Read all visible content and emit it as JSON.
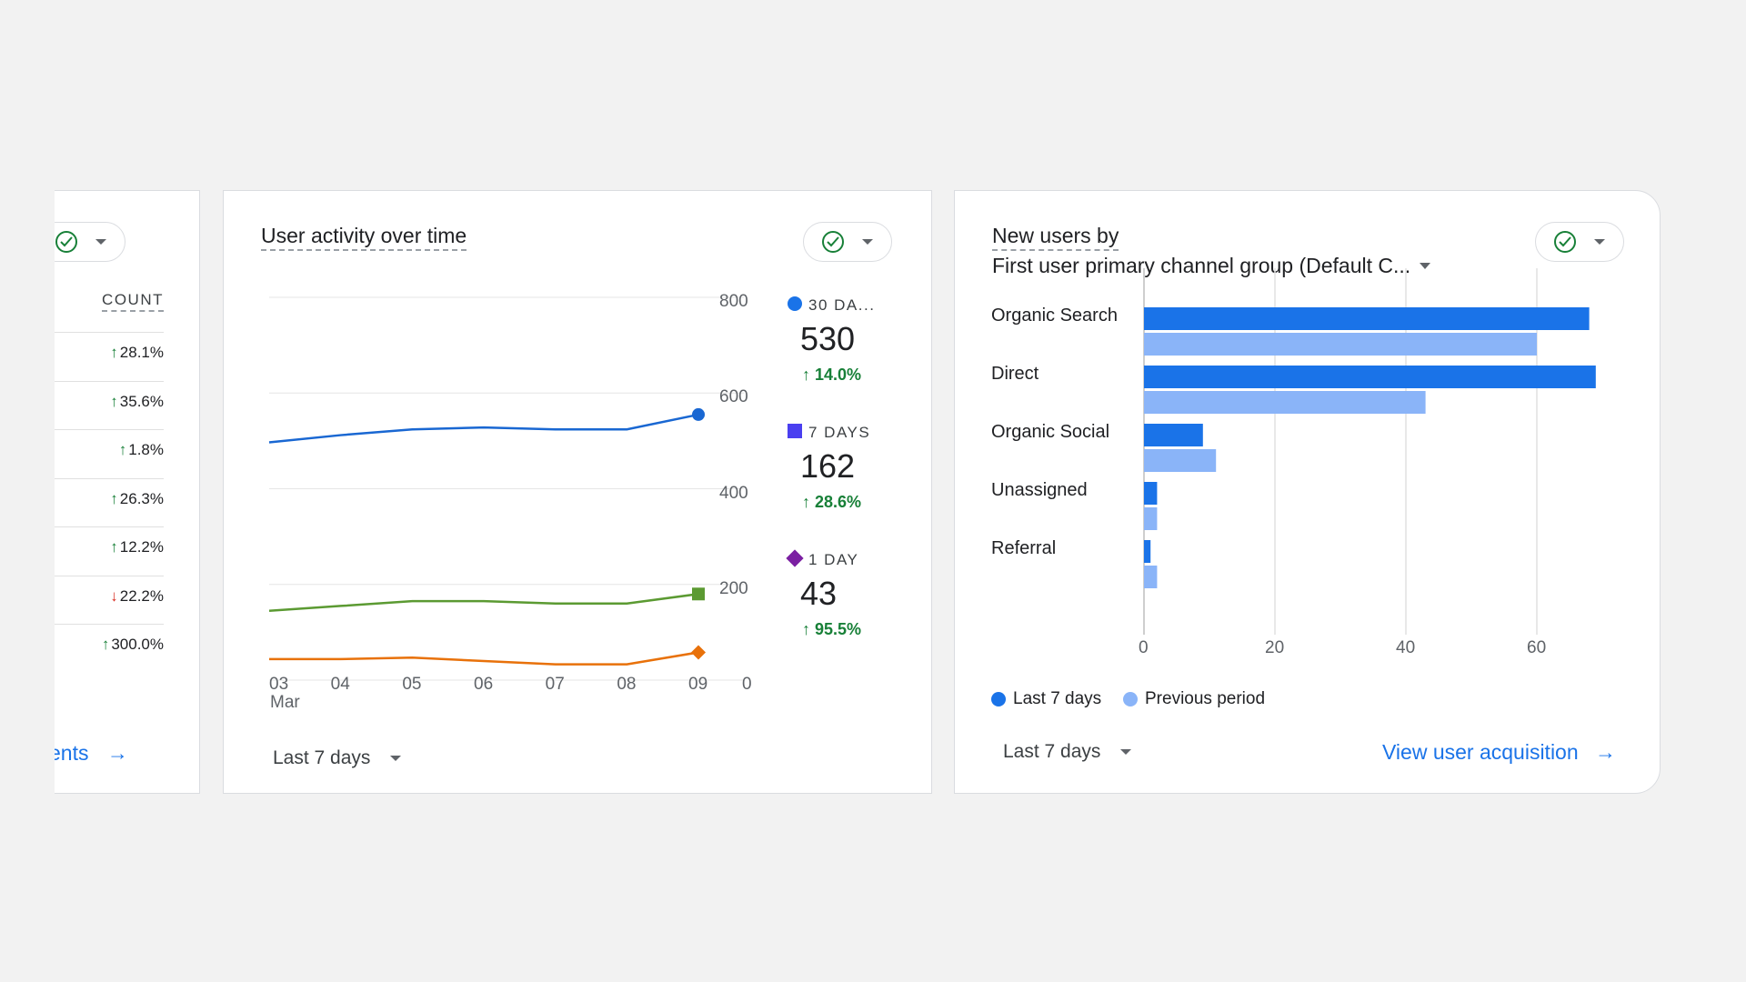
{
  "left_card": {
    "column_header": "COUNT",
    "rows": [
      {
        "dir": "up",
        "value": "28.1%"
      },
      {
        "dir": "up",
        "value": "35.6%"
      },
      {
        "dir": "up",
        "value": "1.8%"
      },
      {
        "dir": "up",
        "value": "26.3%"
      },
      {
        "dir": "up",
        "value": "12.2%"
      },
      {
        "dir": "down",
        "value": "22.2%"
      },
      {
        "dir": "up",
        "value": "300.0%"
      }
    ],
    "link_label": "ents"
  },
  "activity_card": {
    "title": "User activity over time",
    "y_ticks": [
      "800",
      "600",
      "400",
      "200",
      "0"
    ],
    "x_ticks": [
      "03",
      "04",
      "05",
      "06",
      "07",
      "08",
      "09"
    ],
    "x_sub": "Mar",
    "kpis": [
      {
        "label": "30 DA...",
        "value": "530",
        "delta": "14.0%",
        "color": "#1a73e8",
        "marker": "circle"
      },
      {
        "label": "7 DAYS",
        "value": "162",
        "delta": "28.6%",
        "color": "#4a3ff0",
        "marker": "square"
      },
      {
        "label": "1 DAY",
        "value": "43",
        "delta": "95.5%",
        "color": "#7b1fa2",
        "marker": "diamond"
      }
    ],
    "footer_select": "Last 7 days"
  },
  "acquisition_card": {
    "title_line1": "New users by",
    "title_line2": "First user primary channel group (Default C...",
    "legend": [
      {
        "label": "Last 7 days",
        "color": "#1a73e8"
      },
      {
        "label": "Previous period",
        "color": "#8ab4f8"
      }
    ],
    "footer_select": "Last 7 days",
    "link_label": "View user acquisition"
  },
  "chart_data": [
    {
      "type": "line",
      "title": "User activity over time",
      "x": [
        "03 Mar",
        "04",
        "05",
        "06",
        "07",
        "08",
        "09"
      ],
      "ylim": [
        0,
        800
      ],
      "series": [
        {
          "name": "30 DA...",
          "color": "#1967d2",
          "values": [
            497,
            512,
            524,
            528,
            524,
            524,
            555
          ]
        },
        {
          "name": "7 DAYS",
          "color": "#5b9a32",
          "values": [
            145,
            155,
            165,
            165,
            160,
            160,
            180
          ]
        },
        {
          "name": "1 DAY",
          "color": "#e8710a",
          "values": [
            44,
            44,
            47,
            40,
            33,
            33,
            58
          ]
        }
      ]
    },
    {
      "type": "bar",
      "orientation": "horizontal",
      "categories": [
        "Organic Search",
        "Direct",
        "Organic Social",
        "Unassigned",
        "Referral"
      ],
      "xlim": [
        0,
        70
      ],
      "x_ticks": [
        "0",
        "20",
        "40",
        "60"
      ],
      "series": [
        {
          "name": "Last 7 days",
          "color": "#1a73e8",
          "values": [
            68,
            69,
            9,
            2,
            1
          ]
        },
        {
          "name": "Previous period",
          "color": "#8ab4f8",
          "values": [
            60,
            43,
            11,
            2,
            2
          ]
        }
      ]
    }
  ]
}
